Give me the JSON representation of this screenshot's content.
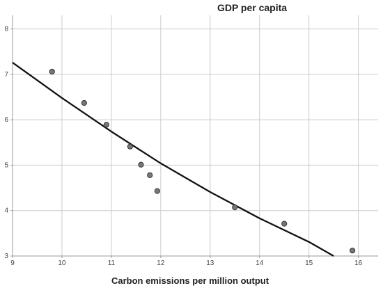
{
  "chart_data": {
    "type": "scatter",
    "title": "GDP per capita",
    "xlabel": "Carbon emissions per million output",
    "ylabel": "",
    "xlim": [
      9,
      16.4
    ],
    "ylim": [
      3,
      8.3
    ],
    "x_ticks": [
      "9",
      "10",
      "11",
      "12",
      "13",
      "14",
      "15",
      "16"
    ],
    "y_ticks": [
      "3",
      "4",
      "5",
      "6",
      "7",
      "8"
    ],
    "grid": true,
    "legend": "none",
    "series": [
      {
        "type": "scatter",
        "points": [
          {
            "x": 9.8,
            "y": 7.06
          },
          {
            "x": 10.45,
            "y": 6.37
          },
          {
            "x": 10.9,
            "y": 5.89
          },
          {
            "x": 11.38,
            "y": 5.41
          },
          {
            "x": 11.6,
            "y": 5.01
          },
          {
            "x": 11.78,
            "y": 4.78
          },
          {
            "x": 11.93,
            "y": 4.43
          },
          {
            "x": 13.5,
            "y": 4.07
          },
          {
            "x": 14.5,
            "y": 3.71
          },
          {
            "x": 15.88,
            "y": 3.12
          }
        ]
      },
      {
        "type": "fit-line",
        "points": [
          {
            "x": 9.0,
            "y": 7.26
          },
          {
            "x": 10.0,
            "y": 6.48
          },
          {
            "x": 11.0,
            "y": 5.74
          },
          {
            "x": 12.0,
            "y": 5.04
          },
          {
            "x": 13.0,
            "y": 4.41
          },
          {
            "x": 14.0,
            "y": 3.83
          },
          {
            "x": 15.0,
            "y": 3.31
          },
          {
            "x": 15.5,
            "y": 3.0
          }
        ]
      }
    ],
    "colors": {
      "marker_fill": "#777777",
      "marker_stroke": "#333333",
      "fit_line": "#111111",
      "grid": "#cccccc",
      "axis": "#999999"
    }
  }
}
